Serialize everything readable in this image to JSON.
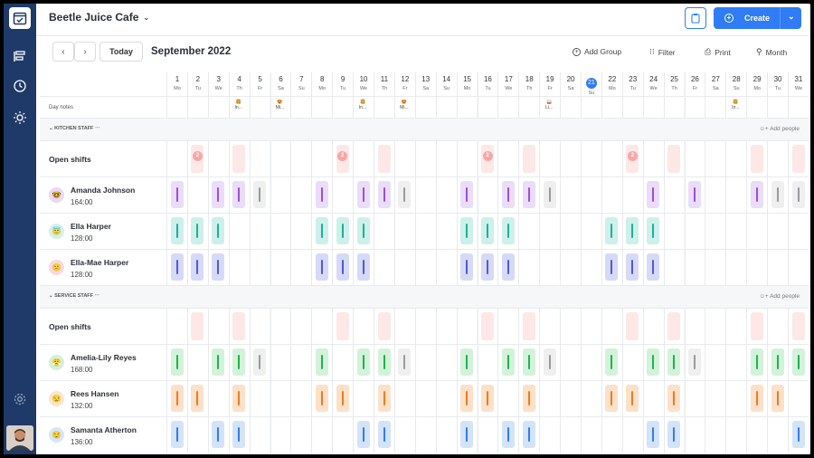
{
  "header": {
    "cafe_name": "Beetle Juice Cafe",
    "create_label": "Create"
  },
  "toolbar": {
    "today_label": "Today",
    "month_title": "September 2022",
    "add_group_label": "Add Group",
    "filter_label": "Filter",
    "print_label": "Print",
    "view_label": "Month"
  },
  "days": [
    {
      "n": "1",
      "d": "Mo"
    },
    {
      "n": "2",
      "d": "Tu"
    },
    {
      "n": "3",
      "d": "We"
    },
    {
      "n": "4",
      "d": "Th"
    },
    {
      "n": "5",
      "d": "Fr"
    },
    {
      "n": "6",
      "d": "Sa"
    },
    {
      "n": "7",
      "d": "Su"
    },
    {
      "n": "8",
      "d": "Mo"
    },
    {
      "n": "9",
      "d": "Tu"
    },
    {
      "n": "10",
      "d": "We"
    },
    {
      "n": "11",
      "d": "Th"
    },
    {
      "n": "12",
      "d": "Fr"
    },
    {
      "n": "13",
      "d": "Sa"
    },
    {
      "n": "14",
      "d": "Su"
    },
    {
      "n": "15",
      "d": "Mo"
    },
    {
      "n": "16",
      "d": "Tu"
    },
    {
      "n": "17",
      "d": "We"
    },
    {
      "n": "18",
      "d": "Th"
    },
    {
      "n": "19",
      "d": "Fr"
    },
    {
      "n": "20",
      "d": "Sa"
    },
    {
      "n": "21",
      "d": "Su"
    },
    {
      "n": "22",
      "d": "Mo"
    },
    {
      "n": "23",
      "d": "Tu"
    },
    {
      "n": "24",
      "d": "We"
    },
    {
      "n": "25",
      "d": "Th"
    },
    {
      "n": "26",
      "d": "Fr"
    },
    {
      "n": "27",
      "d": "Sa"
    },
    {
      "n": "28",
      "d": "Su"
    },
    {
      "n": "29",
      "d": "Mo"
    },
    {
      "n": "30",
      "d": "Tu"
    },
    {
      "n": "31",
      "d": "We"
    }
  ],
  "today_index": 20,
  "day_notes_label": "Day notes",
  "day_notes": [
    {
      "col": 3,
      "icon": "🍔",
      "text": "In..."
    },
    {
      "col": 5,
      "icon": "😍",
      "text": "Mi..."
    },
    {
      "col": 9,
      "icon": "🍔",
      "text": "In..."
    },
    {
      "col": 11,
      "icon": "😍",
      "text": "Mi..."
    },
    {
      "col": 18,
      "icon": "🥁",
      "text": "Li..."
    },
    {
      "col": 27,
      "icon": "🍔",
      "text": "In..."
    }
  ],
  "open_shifts_label": "Open shifts",
  "add_people_label": "Add people",
  "groups": [
    {
      "name": "KITCHEN STAFF",
      "open_cols": [
        1,
        3,
        8,
        10,
        15,
        17,
        22,
        24,
        28,
        30
      ],
      "open_badges": [
        {
          "col": 1,
          "n": "2"
        },
        {
          "col": 8,
          "n": "2"
        },
        {
          "col": 15,
          "n": "2"
        },
        {
          "col": 22,
          "n": "2"
        }
      ],
      "employees": [
        {
          "name": "Amanda Johnson",
          "hours": "164:00",
          "avatar": "🤓",
          "avatar_bg": "#e9d8f7",
          "shifts": [
            {
              "c": 0,
              "t": "p"
            },
            {
              "c": 2,
              "t": "p"
            },
            {
              "c": 3,
              "t": "p"
            },
            {
              "c": 4,
              "t": "g"
            },
            {
              "c": 7,
              "t": "p"
            },
            {
              "c": 9,
              "t": "p"
            },
            {
              "c": 10,
              "t": "p"
            },
            {
              "c": 11,
              "t": "g"
            },
            {
              "c": 14,
              "t": "p"
            },
            {
              "c": 16,
              "t": "p"
            },
            {
              "c": 17,
              "t": "p"
            },
            {
              "c": 18,
              "t": "g"
            },
            {
              "c": 23,
              "t": "p"
            },
            {
              "c": 25,
              "t": "p"
            },
            {
              "c": 28,
              "t": "p"
            },
            {
              "c": 29,
              "t": "g"
            },
            {
              "c": 30,
              "t": "g"
            }
          ]
        },
        {
          "name": "Ella Harper",
          "hours": "128:00",
          "avatar": "😇",
          "avatar_bg": "#d3f1ec",
          "shifts": [
            {
              "c": 0,
              "t": "t"
            },
            {
              "c": 1,
              "t": "t"
            },
            {
              "c": 2,
              "t": "t"
            },
            {
              "c": 7,
              "t": "t"
            },
            {
              "c": 8,
              "t": "t"
            },
            {
              "c": 9,
              "t": "t"
            },
            {
              "c": 14,
              "t": "t"
            },
            {
              "c": 15,
              "t": "t"
            },
            {
              "c": 16,
              "t": "t"
            },
            {
              "c": 21,
              "t": "t"
            },
            {
              "c": 22,
              "t": "t"
            },
            {
              "c": 23,
              "t": "t"
            }
          ]
        },
        {
          "name": "Ella-Mae Harper",
          "hours": "128:00",
          "avatar": "😕",
          "avatar_bg": "#f9d9dc",
          "shifts": [
            {
              "c": 0,
              "t": "i"
            },
            {
              "c": 1,
              "t": "i"
            },
            {
              "c": 2,
              "t": "i"
            },
            {
              "c": 7,
              "t": "i"
            },
            {
              "c": 8,
              "t": "i"
            },
            {
              "c": 9,
              "t": "i"
            },
            {
              "c": 14,
              "t": "i"
            },
            {
              "c": 15,
              "t": "i"
            },
            {
              "c": 16,
              "t": "i"
            },
            {
              "c": 21,
              "t": "i"
            },
            {
              "c": 22,
              "t": "i"
            },
            {
              "c": 23,
              "t": "i"
            }
          ]
        }
      ]
    },
    {
      "name": "SERVICE STAFF",
      "open_cols": [
        1,
        3,
        8,
        10,
        15,
        17,
        22,
        24,
        28,
        30
      ],
      "open_badges": [],
      "employees": [
        {
          "name": "Amelia-Lily Reyes",
          "hours": "168:00",
          "avatar": "😤",
          "avatar_bg": "#d4efda",
          "shifts": [
            {
              "c": 0,
              "t": "gr"
            },
            {
              "c": 2,
              "t": "gr"
            },
            {
              "c": 3,
              "t": "gr"
            },
            {
              "c": 4,
              "t": "g"
            },
            {
              "c": 7,
              "t": "gr"
            },
            {
              "c": 9,
              "t": "gr"
            },
            {
              "c": 10,
              "t": "gr"
            },
            {
              "c": 11,
              "t": "g"
            },
            {
              "c": 14,
              "t": "gr"
            },
            {
              "c": 16,
              "t": "gr"
            },
            {
              "c": 17,
              "t": "gr"
            },
            {
              "c": 18,
              "t": "g"
            },
            {
              "c": 21,
              "t": "gr"
            },
            {
              "c": 23,
              "t": "gr"
            },
            {
              "c": 24,
              "t": "gr"
            },
            {
              "c": 25,
              "t": "g"
            },
            {
              "c": 28,
              "t": "gr"
            },
            {
              "c": 29,
              "t": "gr"
            },
            {
              "c": 30,
              "t": "gr"
            }
          ]
        },
        {
          "name": "Rees Hansen",
          "hours": "132:00",
          "avatar": "😒",
          "avatar_bg": "#fbe5cc",
          "shifts": [
            {
              "c": 0,
              "t": "o"
            },
            {
              "c": 1,
              "t": "o"
            },
            {
              "c": 3,
              "t": "o"
            },
            {
              "c": 7,
              "t": "o"
            },
            {
              "c": 8,
              "t": "o"
            },
            {
              "c": 10,
              "t": "o"
            },
            {
              "c": 14,
              "t": "o"
            },
            {
              "c": 15,
              "t": "o"
            },
            {
              "c": 17,
              "t": "o"
            },
            {
              "c": 21,
              "t": "o"
            },
            {
              "c": 22,
              "t": "o"
            },
            {
              "c": 24,
              "t": "o"
            },
            {
              "c": 28,
              "t": "o"
            },
            {
              "c": 29,
              "t": "o"
            }
          ]
        },
        {
          "name": "Samanta Atherton",
          "hours": "136:00",
          "avatar": "😌",
          "avatar_bg": "#d6e6f9",
          "shifts": [
            {
              "c": 0,
              "t": "b"
            },
            {
              "c": 2,
              "t": "b"
            },
            {
              "c": 3,
              "t": "b"
            },
            {
              "c": 9,
              "t": "b"
            },
            {
              "c": 10,
              "t": "b"
            },
            {
              "c": 14,
              "t": "b"
            },
            {
              "c": 16,
              "t": "b"
            },
            {
              "c": 17,
              "t": "b"
            },
            {
              "c": 23,
              "t": "b"
            },
            {
              "c": 24,
              "t": "b"
            },
            {
              "c": 30,
              "t": "b"
            }
          ]
        }
      ]
    }
  ],
  "colors": {
    "p": {
      "bg": "#eadcfb",
      "bar": "#9b4ee0"
    },
    "g": {
      "bg": "#efefef",
      "bar": "#9a9a9a"
    },
    "t": {
      "bg": "#cdf0ea",
      "bar": "#1fae98"
    },
    "i": {
      "bg": "#d7d9f8",
      "bar": "#4d5bd8"
    },
    "gr": {
      "bg": "#d3f2da",
      "bar": "#22b14c"
    },
    "o": {
      "bg": "#fde0c8",
      "bar": "#f17a22"
    },
    "b": {
      "bg": "#d3e3fa",
      "bar": "#2f7cf6"
    },
    "accent": "#2f7cf6",
    "sidebar": "#1f3a68"
  }
}
